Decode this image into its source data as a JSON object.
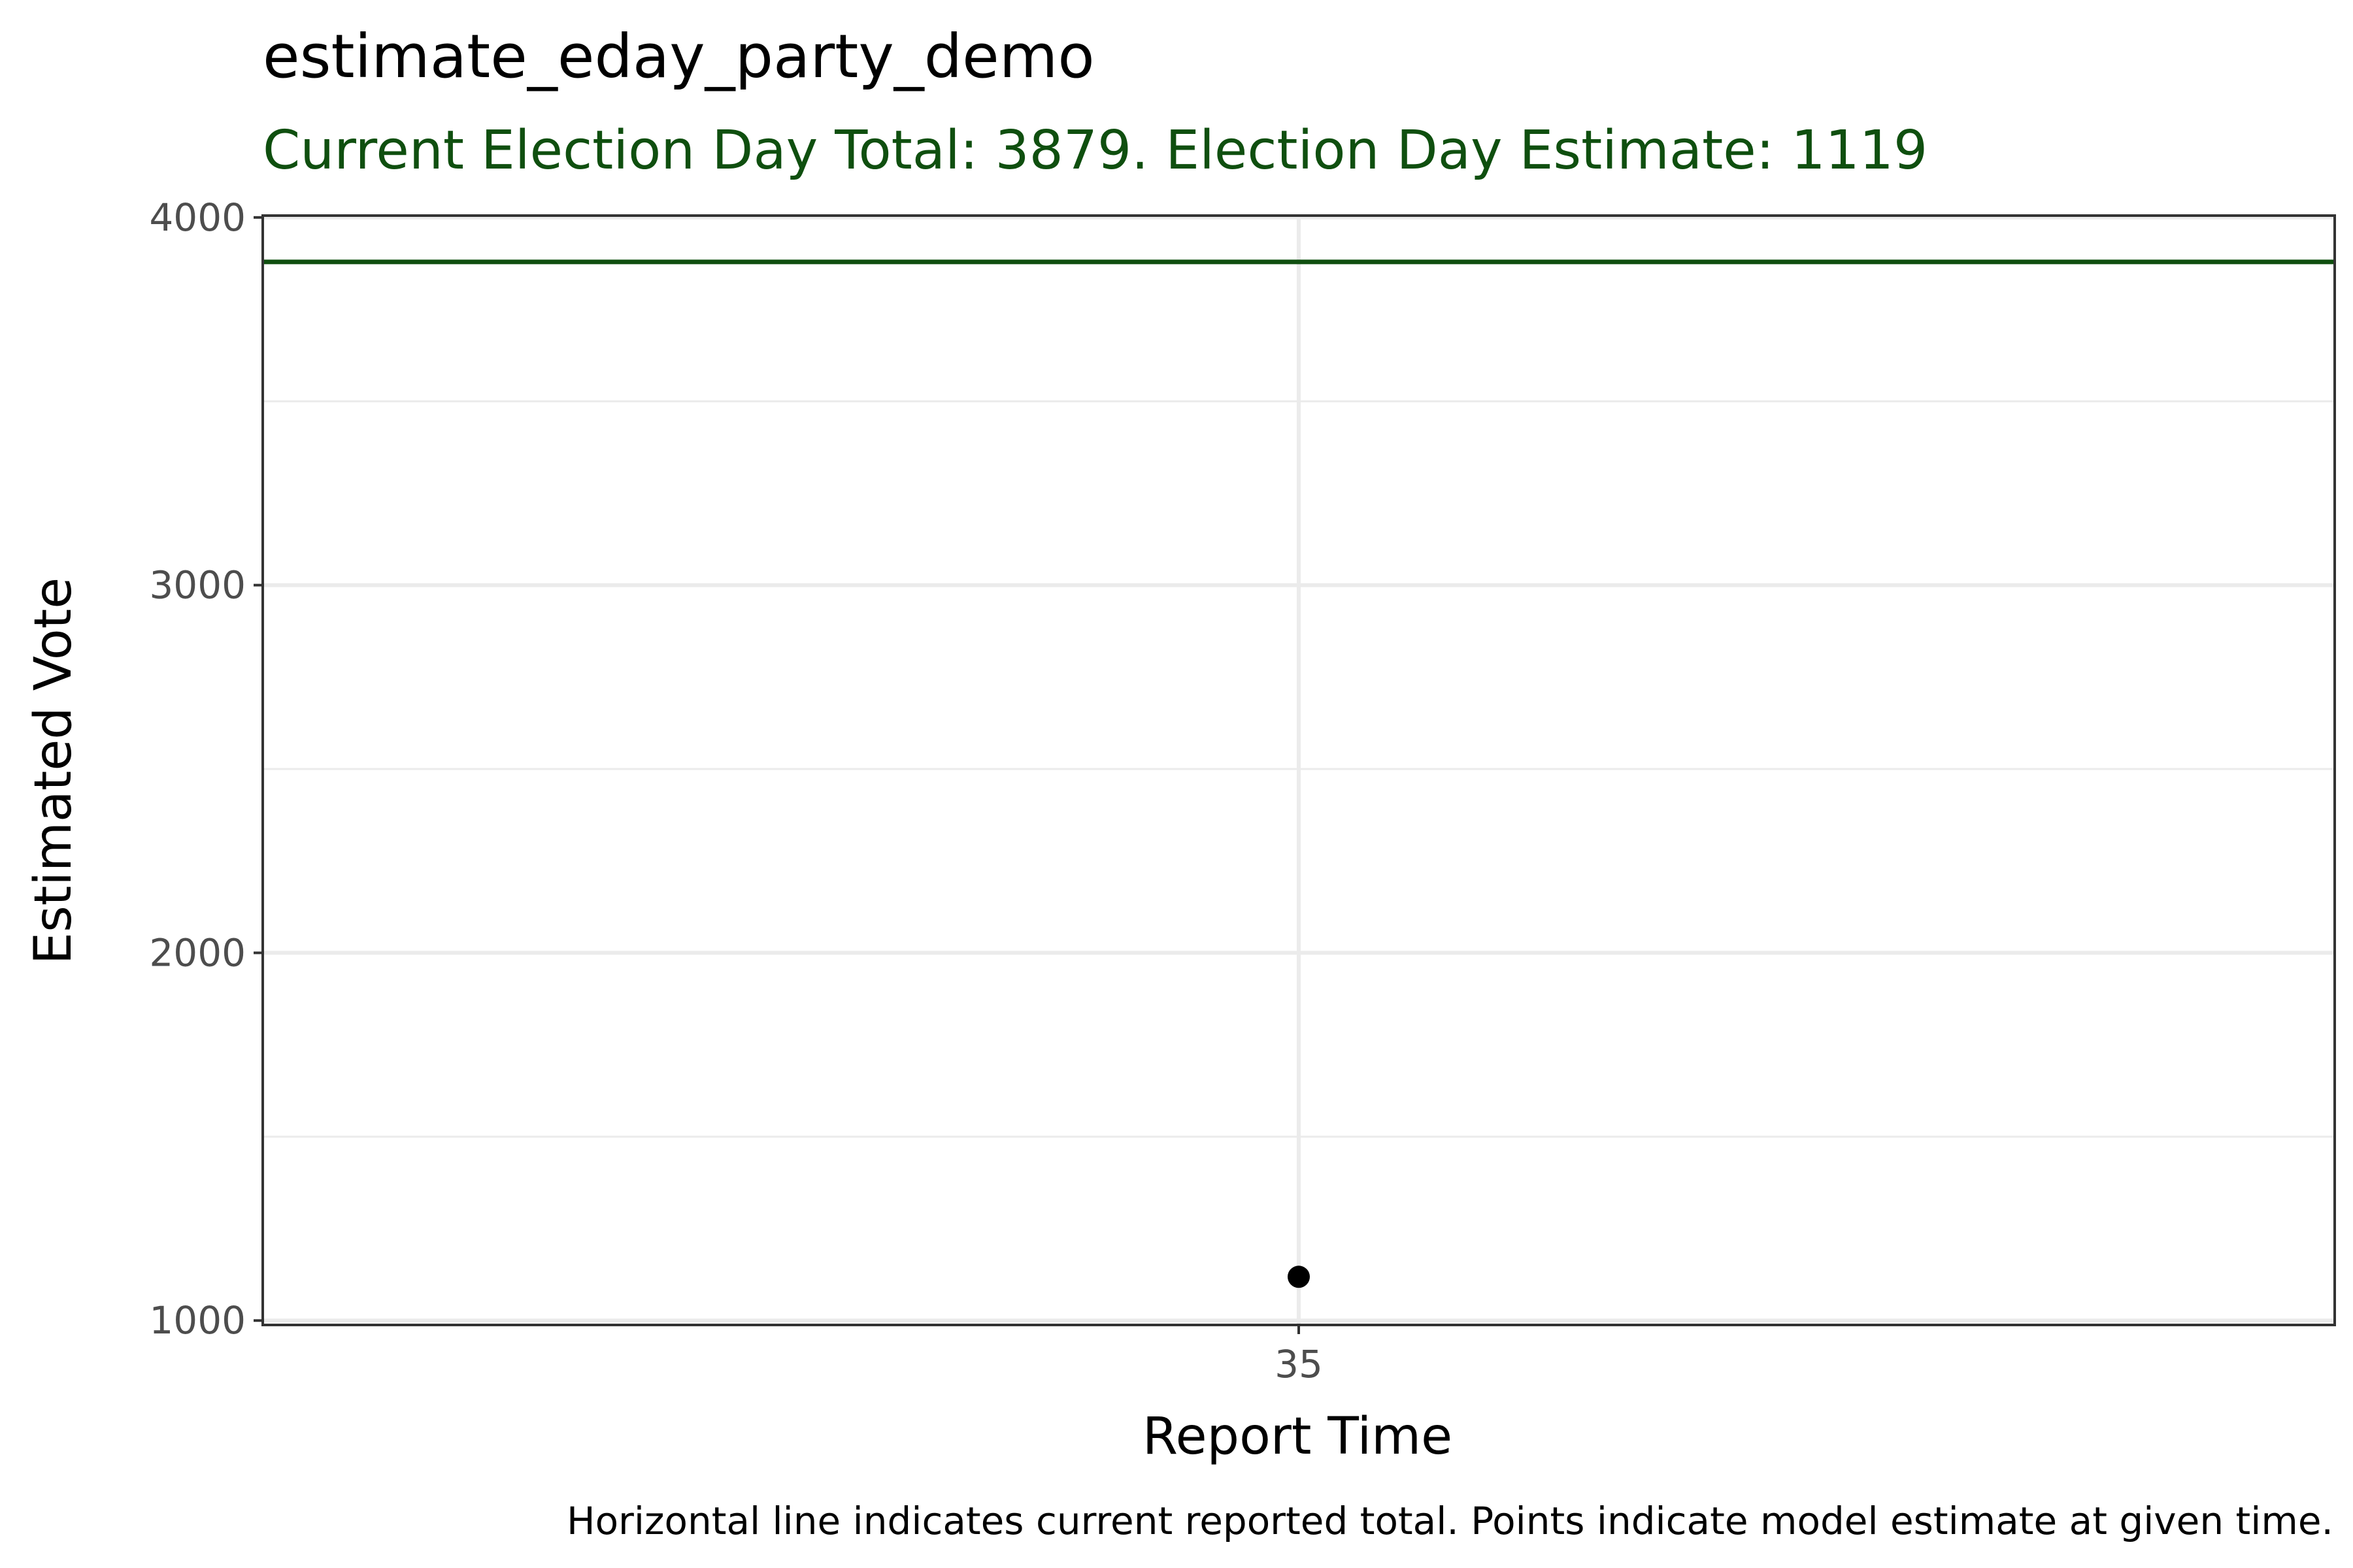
{
  "chart_data": {
    "type": "scatter",
    "title": "estimate_eday_party_demo",
    "subtitle": "Current Election Day Total: 3879. Election Day Estimate: 1119",
    "xlabel": "Report Time",
    "ylabel": "Estimated Vote",
    "caption": "Horizontal line indicates current reported total. Points indicate model estimate at given time.",
    "x_ticks": [
      "35"
    ],
    "y_ticks": [
      "1000",
      "2000",
      "3000",
      "4000"
    ],
    "ylim": [
      988,
      4005
    ],
    "y_minor": [
      1500,
      2500,
      3500
    ],
    "reference_line": {
      "y": 3879
    },
    "points": [
      {
        "x": 35,
        "y": 1119
      }
    ],
    "grid": true,
    "colors": {
      "accent": "#0f4f0f",
      "point": "#000000",
      "grid": "#ebebeb",
      "panel_border": "#333333"
    }
  }
}
